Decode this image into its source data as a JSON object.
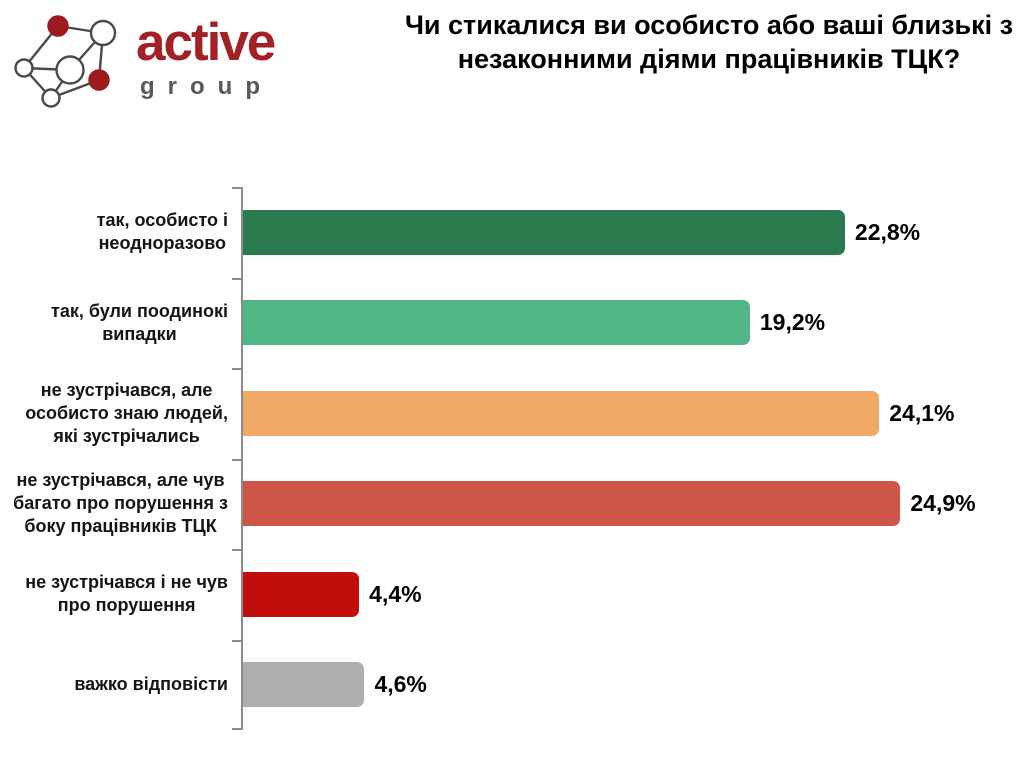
{
  "logo": {
    "brand": "active",
    "sub": "group",
    "brand_color": "#a32125",
    "sub_color": "#58595b",
    "icon": "network-nodes-icon",
    "icon_outline_color": "#4a4a4a",
    "icon_accent_color": "#9c1b1f"
  },
  "title": {
    "line1": "Чи стикалися ви особисто або ваші близькі з",
    "line2": "незаконними діями працівників ТЦК?"
  },
  "chart_data": {
    "type": "bar",
    "orientation": "horizontal",
    "title": "Чи стикалися ви особисто або ваші близькі з незаконними діями працівників ТЦК?",
    "categories": [
      "так, особисто і неодноразово",
      "так, були поодинокі випадки",
      "не зустрічався, але особисто знаю людей, які зустрічались",
      "не зустрічався, але чув багато про порушення з боку працівників ТЦК",
      "не зустрічався і не чув про порушення",
      "важко відповісти"
    ],
    "category_label_lines": [
      [
        "так, особисто і",
        "неодноразово"
      ],
      [
        "так, були поодинокі",
        "випадки"
      ],
      [
        "не зустрічався, але",
        "особисто знаю людей,",
        "які зустрічались"
      ],
      [
        "не зустрічався, але чув",
        "багато про порушення з",
        "боку працівників ТЦК"
      ],
      [
        "не зустрічався і не чув",
        "про порушення"
      ],
      [
        "важко відповісти"
      ]
    ],
    "values": [
      22.8,
      19.2,
      24.1,
      24.9,
      4.4,
      4.6
    ],
    "value_labels": [
      "22,8%",
      "19,2%",
      "24,1%",
      "24,9%",
      "4,4%",
      "4,6%"
    ],
    "bar_colors": [
      "#2a7a4f",
      "#52b787",
      "#f0a966",
      "#cd5648",
      "#c20d0d",
      "#aeaeae"
    ],
    "xlabel": "",
    "ylabel": "",
    "xlim": [
      0,
      25
    ],
    "grid": false,
    "legend": false,
    "axis_color": "#8c8c8c"
  }
}
